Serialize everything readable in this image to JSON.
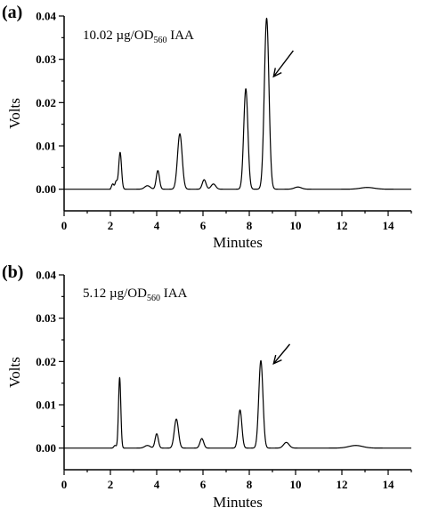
{
  "chart_data": [
    {
      "type": "line",
      "panel_label": "(a)",
      "annotation": {
        "text": "10.02 µg/OD",
        "subscript": "560",
        "suffix": " IAA"
      },
      "xlabel": "Minutes",
      "ylabel": "Volts",
      "xlim": [
        0,
        15
      ],
      "ylim": [
        -0.005,
        0.04
      ],
      "xticks": [
        0,
        2,
        4,
        6,
        8,
        10,
        12,
        14
      ],
      "xtick_labels": [
        "0",
        "2",
        "4",
        "6",
        "8",
        "10",
        "12",
        "14"
      ],
      "yticks": [
        0.0,
        0.01,
        0.02,
        0.03,
        0.04
      ],
      "ytick_labels": [
        "0.00",
        "0.01",
        "0.02",
        "0.03",
        "0.04"
      ],
      "grid": false,
      "baseline": 0.0,
      "peaks": [
        {
          "x": 2.1,
          "y": 0.0012,
          "w": 0.05
        },
        {
          "x": 2.25,
          "y": 0.0018,
          "w": 0.05
        },
        {
          "x": 2.42,
          "y": 0.0085,
          "w": 0.06
        },
        {
          "x": 3.6,
          "y": 0.0008,
          "w": 0.12
        },
        {
          "x": 4.05,
          "y": 0.0043,
          "w": 0.07
        },
        {
          "x": 5.0,
          "y": 0.0128,
          "w": 0.1
        },
        {
          "x": 6.05,
          "y": 0.0022,
          "w": 0.08
        },
        {
          "x": 6.45,
          "y": 0.0012,
          "w": 0.1
        },
        {
          "x": 7.85,
          "y": 0.0232,
          "w": 0.09
        },
        {
          "x": 8.75,
          "y": 0.0395,
          "w": 0.1
        },
        {
          "x": 10.1,
          "y": 0.0005,
          "w": 0.15
        },
        {
          "x": 13.1,
          "y": 0.0004,
          "w": 0.3
        }
      ],
      "arrow": {
        "from": [
          9.9,
          0.032
        ],
        "to": [
          9.05,
          0.026
        ]
      },
      "line_color": "#000000"
    },
    {
      "type": "line",
      "panel_label": "(b)",
      "annotation": {
        "text": "5.12 µg/OD",
        "subscript": "560",
        "suffix": " IAA"
      },
      "xlabel": "Minutes",
      "ylabel": "Volts",
      "xlim": [
        0,
        15
      ],
      "ylim": [
        -0.005,
        0.04
      ],
      "xticks": [
        0,
        2,
        4,
        6,
        8,
        10,
        12,
        14
      ],
      "xtick_labels": [
        "0",
        "2",
        "4",
        "6",
        "8",
        "10",
        "12",
        "14"
      ],
      "yticks": [
        0.0,
        0.01,
        0.02,
        0.03,
        0.04
      ],
      "ytick_labels": [
        "0.00",
        "0.01",
        "0.02",
        "0.03",
        "0.04"
      ],
      "grid": false,
      "baseline": 0.0,
      "peaks": [
        {
          "x": 2.2,
          "y": 0.0006,
          "w": 0.05
        },
        {
          "x": 2.4,
          "y": 0.0163,
          "w": 0.05
        },
        {
          "x": 3.6,
          "y": 0.0006,
          "w": 0.12
        },
        {
          "x": 4.0,
          "y": 0.0033,
          "w": 0.07
        },
        {
          "x": 4.85,
          "y": 0.0067,
          "w": 0.09
        },
        {
          "x": 5.95,
          "y": 0.0022,
          "w": 0.08
        },
        {
          "x": 7.6,
          "y": 0.0088,
          "w": 0.08
        },
        {
          "x": 8.5,
          "y": 0.0202,
          "w": 0.09
        },
        {
          "x": 9.6,
          "y": 0.0013,
          "w": 0.12
        },
        {
          "x": 12.6,
          "y": 0.0006,
          "w": 0.3
        }
      ],
      "arrow": {
        "from": [
          9.75,
          0.024
        ],
        "to": [
          9.05,
          0.0195
        ]
      },
      "line_color": "#000000"
    }
  ]
}
